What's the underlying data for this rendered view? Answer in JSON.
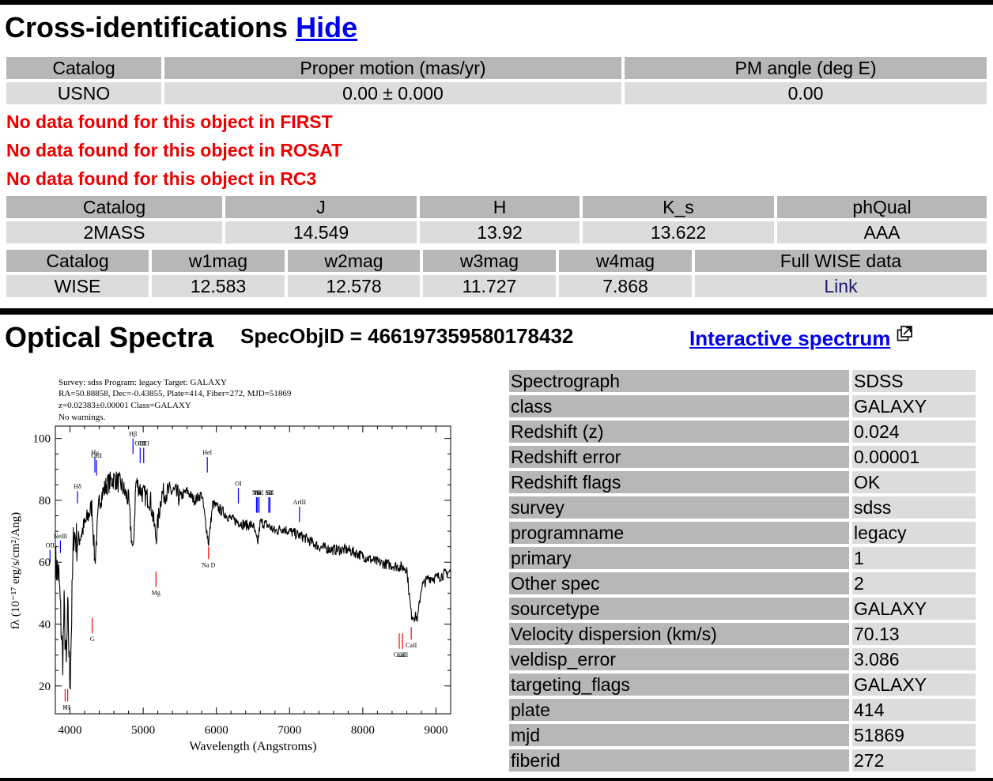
{
  "cross_ids": {
    "title": "Cross-identifications",
    "hide_link": "Hide",
    "usno": {
      "headers": [
        "Catalog",
        "Proper motion (mas/yr)",
        "PM angle (deg E)"
      ],
      "row": [
        "USNO",
        "0.00 ± 0.000",
        "0.00"
      ]
    },
    "no_data": [
      "No data found for this object in FIRST",
      "No data found for this object in ROSAT",
      "No data found for this object in RC3"
    ],
    "twomass": {
      "headers": [
        "Catalog",
        "J",
        "H",
        "K_s",
        "phQual"
      ],
      "row": [
        "2MASS",
        "14.549",
        "13.92",
        "13.622",
        "AAA"
      ]
    },
    "wise": {
      "headers": [
        "Catalog",
        "w1mag",
        "w2mag",
        "w3mag",
        "w4mag",
        "Full WISE data"
      ],
      "row": [
        "WISE",
        "12.583",
        "12.578",
        "11.727",
        "7.868",
        "Link"
      ]
    }
  },
  "optical": {
    "title": "Optical Spectra",
    "specobjid": "SpecObjID = 466197359580178432",
    "interactive_link": "Interactive spectrum",
    "props": [
      [
        "Spectrograph",
        "SDSS"
      ],
      [
        "class",
        "GALAXY"
      ],
      [
        "Redshift (z)",
        "0.024"
      ],
      [
        "Redshift error",
        "0.00001"
      ],
      [
        "Redshift flags",
        "OK"
      ],
      [
        "survey",
        "sdss"
      ],
      [
        "programname",
        "legacy"
      ],
      [
        "primary",
        "1"
      ],
      [
        "Other spec",
        "2"
      ],
      [
        "sourcetype",
        "GALAXY"
      ],
      [
        "Velocity dispersion (km/s)",
        "70.13"
      ],
      [
        "veldisp_error",
        "3.086"
      ],
      [
        "targeting_flags",
        "GALAXY"
      ],
      [
        "plate",
        "414"
      ],
      [
        "mjd",
        "51869"
      ],
      [
        "fiberid",
        "272"
      ]
    ]
  },
  "plot": {
    "header_line1": "Survey: sdss Program: legacy Target: GALAXY",
    "header_line2": "RA=50.88858, Dec=-0.43855, Plate=414, Fiber=272, MJD=51869",
    "header_line3": "z=0.02383±0.00001 Class=GALAXY",
    "header_line4": "No warnings.",
    "xlabel": "Wavelength (Angstroms)",
    "ylabel": "fλ (10⁻¹⁷ erg/s/cm²/Ang)",
    "x_ticks": [
      "4000",
      "5000",
      "6000",
      "7000",
      "8000",
      "9000"
    ],
    "y_ticks": [
      "20",
      "40",
      "60",
      "80",
      "100"
    ],
    "colors": {
      "emission": "#0000ff",
      "absorption": "#ff0000"
    }
  },
  "chart_data": {
    "type": "line",
    "xlim": [
      3800,
      9200
    ],
    "ylim": [
      11,
      104
    ],
    "x": [
      3800,
      3850,
      3900,
      3920,
      3950,
      3970,
      4000,
      4050,
      4100,
      4200,
      4300,
      4340,
      4400,
      4500,
      4600,
      4700,
      4800,
      4861,
      4900,
      5000,
      5100,
      5175,
      5250,
      5400,
      5500,
      5600,
      5700,
      5800,
      5893,
      5950,
      6000,
      6100,
      6200,
      6300,
      6400,
      6500,
      6563,
      6600,
      6700,
      6800,
      6900,
      7000,
      7200,
      7400,
      7600,
      7800,
      8000,
      8200,
      8400,
      8600,
      8662,
      8750,
      8800,
      8900,
      9000,
      9100,
      9200
    ],
    "y": [
      60,
      55,
      28,
      45,
      25,
      45,
      20,
      70,
      66,
      72,
      78,
      60,
      80,
      85,
      87,
      85,
      80,
      62,
      86,
      82,
      80,
      68,
      82,
      83,
      81,
      83,
      80,
      82,
      66,
      79,
      78,
      76,
      74,
      73,
      72,
      72,
      66,
      73,
      72,
      70,
      71,
      70,
      68,
      65,
      64,
      64,
      62,
      60,
      59,
      58,
      43,
      42,
      52,
      55,
      55,
      56,
      57
    ]
  },
  "lines": {
    "emission": [
      {
        "label": "OII",
        "x": 3727,
        "y_top": 64,
        "y_bot": 60
      },
      {
        "label": "NeIII",
        "x": 3869,
        "y_top": 67,
        "y_bot": 63
      },
      {
        "label": "Hδ",
        "x": 4102,
        "y_top": 83,
        "y_bot": 79
      },
      {
        "label": "Hγ",
        "x": 4340,
        "y_top": 94,
        "y_bot": 89
      },
      {
        "label": "OIII",
        "x": 4363,
        "y_top": 93,
        "y_bot": 88
      },
      {
        "label": "Hβ",
        "x": 4861,
        "y_top": 100,
        "y_bot": 95
      },
      {
        "label": "OIII",
        "x": 4959,
        "y_top": 97,
        "y_bot": 92
      },
      {
        "label": "OIII",
        "x": 5007,
        "y_top": 97,
        "y_bot": 92
      },
      {
        "label": "HeI",
        "x": 5876,
        "y_top": 94,
        "y_bot": 89
      },
      {
        "label": "OI",
        "x": 6300,
        "y_top": 84,
        "y_bot": 79
      },
      {
        "label": "NII",
        "x": 6548,
        "y_top": 81,
        "y_bot": 76
      },
      {
        "label": "Hα",
        "x": 6563,
        "y_top": 81,
        "y_bot": 76
      },
      {
        "label": "NII",
        "x": 6583,
        "y_top": 81,
        "y_bot": 76
      },
      {
        "label": "SII",
        "x": 6716,
        "y_top": 81,
        "y_bot": 76
      },
      {
        "label": "SII",
        "x": 6731,
        "y_top": 81,
        "y_bot": 76
      },
      {
        "label": "ArIII",
        "x": 7135,
        "y_top": 78,
        "y_bot": 73
      }
    ],
    "absorption": [
      {
        "label": "K",
        "x": 3934,
        "y_top": 19,
        "y_bot": 15
      },
      {
        "label": "H",
        "x": 3969,
        "y_top": 19,
        "y_bot": 15
      },
      {
        "label": "G",
        "x": 4304,
        "y_top": 42,
        "y_bot": 37
      },
      {
        "label": "Mg",
        "x": 5175,
        "y_top": 57,
        "y_bot": 52
      },
      {
        "label": "Na D",
        "x": 5893,
        "y_top": 65,
        "y_bot": 61
      },
      {
        "label": "CaII",
        "x": 8498,
        "y_top": 37,
        "y_bot": 32
      },
      {
        "label": "CaII",
        "x": 8542,
        "y_top": 37,
        "y_bot": 32
      },
      {
        "label": "CaII",
        "x": 8662,
        "y_top": 39,
        "y_bot": 35
      }
    ]
  }
}
